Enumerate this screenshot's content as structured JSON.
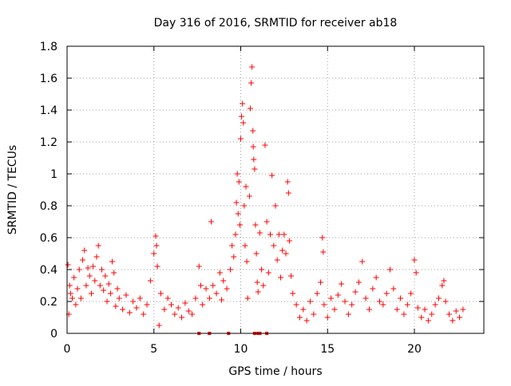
{
  "chart_data": {
    "type": "scatter",
    "title": "Day 316 of 2016, SRMTID for receiver ab18",
    "xlabel": "GPS time / hours",
    "ylabel": "SRMTID / TECUs",
    "xlim": [
      0,
      24
    ],
    "ylim": [
      0,
      1.8
    ],
    "xticks": [
      0,
      5,
      10,
      15,
      20
    ],
    "xtick_labels": [
      "0",
      "5",
      "10",
      "15",
      "20"
    ],
    "yticks": [
      0,
      0.2,
      0.4,
      0.6,
      0.8,
      1,
      1.2,
      1.4,
      1.6,
      1.8
    ],
    "ytick_labels": [
      "0",
      "0.2",
      "0.4",
      "0.6",
      "0.8",
      "1",
      "1.2",
      "1.4",
      "1.6",
      "1.8"
    ],
    "grid": true,
    "marker": "+",
    "color": "#ff0000",
    "series": [
      {
        "name": "SRMTID",
        "points": [
          [
            0.05,
            0.43
          ],
          [
            0.1,
            0.12
          ],
          [
            0.15,
            0.3
          ],
          [
            0.2,
            0.25
          ],
          [
            0.3,
            0.22
          ],
          [
            0.4,
            0.35
          ],
          [
            0.5,
            0.18
          ],
          [
            0.6,
            0.28
          ],
          [
            0.7,
            0.4
          ],
          [
            0.8,
            0.22
          ],
          [
            0.9,
            0.46
          ],
          [
            1.0,
            0.52
          ],
          [
            1.1,
            0.3
          ],
          [
            1.2,
            0.41
          ],
          [
            1.3,
            0.36
          ],
          [
            1.4,
            0.25
          ],
          [
            1.5,
            0.42
          ],
          [
            1.6,
            0.33
          ],
          [
            1.7,
            0.48
          ],
          [
            1.8,
            0.55
          ],
          [
            1.9,
            0.3
          ],
          [
            2.0,
            0.4
          ],
          [
            2.1,
            0.27
          ],
          [
            2.2,
            0.36
          ],
          [
            2.3,
            0.2
          ],
          [
            2.4,
            0.31
          ],
          [
            2.5,
            0.25
          ],
          [
            2.6,
            0.45
          ],
          [
            2.7,
            0.38
          ],
          [
            2.8,
            0.17
          ],
          [
            2.9,
            0.28
          ],
          [
            3.0,
            0.22
          ],
          [
            3.2,
            0.15
          ],
          [
            3.4,
            0.24
          ],
          [
            3.6,
            0.13
          ],
          [
            3.8,
            0.2
          ],
          [
            4.0,
            0.16
          ],
          [
            4.2,
            0.22
          ],
          [
            4.4,
            0.12
          ],
          [
            4.6,
            0.18
          ],
          [
            4.8,
            0.33
          ],
          [
            5.0,
            0.5
          ],
          [
            5.1,
            0.61
          ],
          [
            5.15,
            0.55
          ],
          [
            5.2,
            0.42
          ],
          [
            5.3,
            0.05
          ],
          [
            5.4,
            0.25
          ],
          [
            5.6,
            0.15
          ],
          [
            5.8,
            0.22
          ],
          [
            6.0,
            0.18
          ],
          [
            6.2,
            0.12
          ],
          [
            6.4,
            0.16
          ],
          [
            6.6,
            0.1
          ],
          [
            6.8,
            0.19
          ],
          [
            7.0,
            0.14
          ],
          [
            7.2,
            0.12
          ],
          [
            7.4,
            0.22
          ],
          [
            7.6,
            0.42
          ],
          [
            7.7,
            0.3
          ],
          [
            7.8,
            0.18
          ],
          [
            8.0,
            0.28
          ],
          [
            8.2,
            0.22
          ],
          [
            8.3,
            0.7
          ],
          [
            8.4,
            0.3
          ],
          [
            8.6,
            0.25
          ],
          [
            8.8,
            0.38
          ],
          [
            8.9,
            0.21
          ],
          [
            9.0,
            0.33
          ],
          [
            9.2,
            0.28
          ],
          [
            9.4,
            0.4
          ],
          [
            9.5,
            0.55
          ],
          [
            9.6,
            0.48
          ],
          [
            9.7,
            0.62
          ],
          [
            9.75,
            0.82
          ],
          [
            9.8,
            1.0
          ],
          [
            9.85,
            0.75
          ],
          [
            9.9,
            0.95
          ],
          [
            9.95,
            0.68
          ],
          [
            10.0,
            1.22
          ],
          [
            10.05,
            1.36
          ],
          [
            10.1,
            1.44
          ],
          [
            10.15,
            1.32
          ],
          [
            10.2,
            0.8
          ],
          [
            10.25,
            0.55
          ],
          [
            10.3,
            0.92
          ],
          [
            10.35,
            0.45
          ],
          [
            10.4,
            0.22
          ],
          [
            10.5,
            0.86
          ],
          [
            10.55,
            1.41
          ],
          [
            10.6,
            1.57
          ],
          [
            10.65,
            1.67
          ],
          [
            10.7,
            1.27
          ],
          [
            10.72,
            1.17
          ],
          [
            10.75,
            1.09
          ],
          [
            10.8,
            1.03
          ],
          [
            10.85,
            0.68
          ],
          [
            10.9,
            0.5
          ],
          [
            10.95,
            0.32
          ],
          [
            11.0,
            0.26
          ],
          [
            11.1,
            0.63
          ],
          [
            11.2,
            0.4
          ],
          [
            11.3,
            0.3
          ],
          [
            11.4,
            1.18
          ],
          [
            11.5,
            0.7
          ],
          [
            11.6,
            0.38
          ],
          [
            11.7,
            0.62
          ],
          [
            11.8,
            0.99
          ],
          [
            11.9,
            0.55
          ],
          [
            12.0,
            0.8
          ],
          [
            12.1,
            0.46
          ],
          [
            12.2,
            0.62
          ],
          [
            12.3,
            0.35
          ],
          [
            12.4,
            0.52
          ],
          [
            12.5,
            0.62
          ],
          [
            12.6,
            0.5
          ],
          [
            12.7,
            0.95
          ],
          [
            12.75,
            0.88
          ],
          [
            12.8,
            0.58
          ],
          [
            12.9,
            0.36
          ],
          [
            13.0,
            0.25
          ],
          [
            13.2,
            0.18
          ],
          [
            13.4,
            0.1
          ],
          [
            13.6,
            0.15
          ],
          [
            13.8,
            0.08
          ],
          [
            14.0,
            0.2
          ],
          [
            14.2,
            0.12
          ],
          [
            14.4,
            0.25
          ],
          [
            14.6,
            0.32
          ],
          [
            14.7,
            0.6
          ],
          [
            14.75,
            0.51
          ],
          [
            14.8,
            0.18
          ],
          [
            15.0,
            0.1
          ],
          [
            15.2,
            0.22
          ],
          [
            15.4,
            0.15
          ],
          [
            15.6,
            0.24
          ],
          [
            15.8,
            0.31
          ],
          [
            16.0,
            0.2
          ],
          [
            16.2,
            0.12
          ],
          [
            16.4,
            0.18
          ],
          [
            16.6,
            0.26
          ],
          [
            16.8,
            0.32
          ],
          [
            17.0,
            0.45
          ],
          [
            17.2,
            0.22
          ],
          [
            17.4,
            0.15
          ],
          [
            17.6,
            0.28
          ],
          [
            17.8,
            0.35
          ],
          [
            18.0,
            0.2
          ],
          [
            18.2,
            0.18
          ],
          [
            18.4,
            0.25
          ],
          [
            18.6,
            0.4
          ],
          [
            18.8,
            0.28
          ],
          [
            19.0,
            0.15
          ],
          [
            19.2,
            0.22
          ],
          [
            19.4,
            0.12
          ],
          [
            19.6,
            0.18
          ],
          [
            19.8,
            0.25
          ],
          [
            20.0,
            0.46
          ],
          [
            20.1,
            0.38
          ],
          [
            20.2,
            0.16
          ],
          [
            20.4,
            0.1
          ],
          [
            20.6,
            0.15
          ],
          [
            20.8,
            0.08
          ],
          [
            21.0,
            0.12
          ],
          [
            21.2,
            0.18
          ],
          [
            21.4,
            0.22
          ],
          [
            21.6,
            0.3
          ],
          [
            21.7,
            0.33
          ],
          [
            21.8,
            0.2
          ],
          [
            22.0,
            0.12
          ],
          [
            22.2,
            0.08
          ],
          [
            22.4,
            0.14
          ],
          [
            22.6,
            0.1
          ],
          [
            22.8,
            0.15
          ]
        ]
      }
    ],
    "zero_markers_x": [
      7.6,
      8.2,
      9.3,
      10.8,
      11.0,
      11.1,
      11.5
    ]
  }
}
